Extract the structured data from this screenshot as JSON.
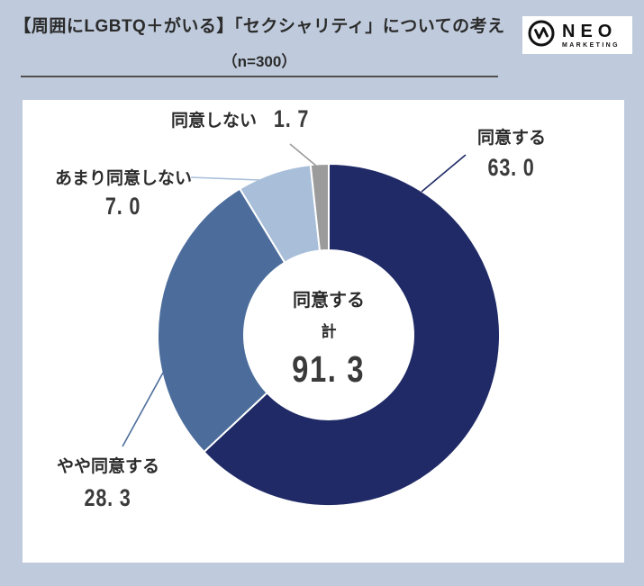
{
  "header": {
    "title": "【周囲にLGBTQ＋がいる】「セクシャリティ」についての考え",
    "subtitle": "（n=300）"
  },
  "logo": {
    "name": "NEO",
    "sub": "MARKETING"
  },
  "colors": {
    "background": "#bfcbdc",
    "card": "#ffffff",
    "agree": "#1f2a66",
    "somewhat_agree": "#4c6d9c",
    "somewhat_disagree": "#a9bfd9",
    "disagree": "#9b9b9b"
  },
  "chart_data": {
    "type": "pie",
    "subtype": "donut",
    "title": "【周囲にLGBTQ＋がいる】「セクシャリティ」についての考え",
    "sample_size": 300,
    "start_angle_deg": 0,
    "direction": "clockwise",
    "legend_position": "callout-labels",
    "segments": [
      {
        "label": "同意する",
        "value": 63.0,
        "display": "63. 0",
        "color": "#1f2a66"
      },
      {
        "label": "やや同意する",
        "value": 28.3,
        "display": "28. 3",
        "color": "#4c6d9c"
      },
      {
        "label": "あまり同意しない",
        "value": 7.0,
        "display": "7. 0",
        "color": "#a9bfd9"
      },
      {
        "label": "同意しない",
        "value": 1.7,
        "display": "1. 7",
        "color": "#9b9b9b"
      }
    ],
    "center_label": {
      "line1": "同意する",
      "line2": "計",
      "value": 91.3,
      "display": "91. 3"
    }
  }
}
